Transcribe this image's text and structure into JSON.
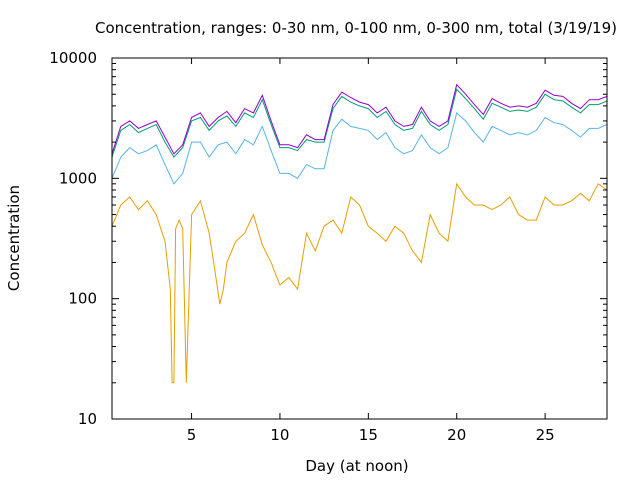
{
  "chart_data": {
    "type": "line",
    "title": "Concentration, ranges: 0-30 nm, 0-100 nm, 0-300 nm, total (3/19/19)",
    "xlabel": "Day (at noon)",
    "ylabel": "Concentration",
    "xlim": [
      0.5,
      28.5
    ],
    "ylim": [
      10,
      10000
    ],
    "yscale": "log",
    "grid": false,
    "legend": "none",
    "xticks": [
      5,
      10,
      15,
      20,
      25
    ],
    "xtick_labels": [
      "5",
      "10",
      "15",
      "20",
      "25"
    ],
    "yticks": [
      10,
      100,
      1000,
      10000
    ],
    "ytick_labels": [
      "10",
      "100",
      "1000",
      "10000"
    ],
    "series": [
      {
        "color": "#e69f00",
        "x": [
          0.5,
          1,
          1.5,
          2,
          2.5,
          3,
          3.5,
          3.8,
          3.9,
          4,
          4.1,
          4.3,
          4.5,
          4.7,
          5,
          5.5,
          6,
          6.3,
          6.6,
          6.8,
          7,
          7.5,
          8,
          8.5,
          9,
          9.5,
          10,
          10.5,
          11,
          11.5,
          12,
          12.5,
          13,
          13.5,
          14,
          14.5,
          15,
          15.5,
          16,
          16.5,
          17,
          17.5,
          18,
          18.5,
          19,
          19.5,
          20,
          20.5,
          21,
          21.5,
          22,
          22.5,
          23,
          23.5,
          24,
          24.5,
          25,
          25.5,
          26,
          26.5,
          27,
          27.5,
          28,
          28.5
        ],
        "values": [
          400,
          600,
          700,
          550,
          650,
          500,
          300,
          120,
          20,
          20,
          380,
          450,
          380,
          20,
          500,
          650,
          350,
          180,
          90,
          120,
          200,
          300,
          350,
          500,
          280,
          200,
          130,
          150,
          120,
          350,
          250,
          400,
          450,
          350,
          700,
          600,
          400,
          350,
          300,
          400,
          350,
          250,
          200,
          500,
          350,
          300,
          900,
          700,
          600,
          600,
          550,
          600,
          700,
          500,
          450,
          450,
          700,
          600,
          600,
          650,
          750,
          650,
          900,
          800
        ]
      },
      {
        "color": "#56b4e9",
        "x": [
          0.5,
          1,
          1.5,
          2,
          2.5,
          3,
          3.5,
          4,
          4.5,
          5,
          5.5,
          6,
          6.5,
          7,
          7.5,
          8,
          8.5,
          9,
          9.5,
          10,
          10.5,
          11,
          11.5,
          12,
          12.5,
          13,
          13.5,
          14,
          14.5,
          15,
          15.5,
          16,
          16.5,
          17,
          17.5,
          18,
          18.5,
          19,
          19.5,
          20,
          20.5,
          21,
          21.5,
          22,
          22.5,
          23,
          23.5,
          24,
          24.5,
          25,
          25.5,
          26,
          26.5,
          27,
          27.5,
          28,
          28.5
        ],
        "values": [
          1000,
          1500,
          1800,
          1600,
          1700,
          1900,
          1300,
          900,
          1100,
          2000,
          2000,
          1500,
          1900,
          2000,
          1600,
          2100,
          1900,
          2700,
          1700,
          1100,
          1100,
          1000,
          1300,
          1200,
          1200,
          2500,
          3100,
          2700,
          2600,
          2500,
          2100,
          2400,
          1800,
          1600,
          1700,
          2300,
          1800,
          1600,
          1800,
          3500,
          3000,
          2400,
          2000,
          2700,
          2500,
          2300,
          2400,
          2300,
          2500,
          3200,
          2900,
          2800,
          2500,
          2200,
          2600,
          2600,
          2800
        ]
      },
      {
        "color": "#009e73",
        "x": [
          0.5,
          1,
          1.5,
          2,
          2.5,
          3,
          3.5,
          4,
          4.5,
          5,
          5.5,
          6,
          6.5,
          7,
          7.5,
          8,
          8.5,
          9,
          9.5,
          10,
          10.5,
          11,
          11.5,
          12,
          12.5,
          13,
          13.5,
          14,
          14.5,
          15,
          15.5,
          16,
          16.5,
          17,
          17.5,
          18,
          18.5,
          19,
          19.5,
          20,
          20.5,
          21,
          21.5,
          22,
          22.5,
          23,
          23.5,
          24,
          24.5,
          25,
          25.5,
          26,
          26.5,
          27,
          27.5,
          28,
          28.5
        ],
        "values": [
          1500,
          2500,
          2800,
          2400,
          2600,
          2800,
          2000,
          1500,
          1800,
          3000,
          3200,
          2500,
          3000,
          3300,
          2700,
          3500,
          3200,
          4500,
          2800,
          1800,
          1800,
          1700,
          2100,
          2000,
          2000,
          3800,
          4800,
          4300,
          4000,
          3800,
          3200,
          3600,
          2800,
          2500,
          2600,
          3600,
          2800,
          2500,
          2800,
          5500,
          4600,
          3800,
          3100,
          4200,
          3900,
          3600,
          3700,
          3600,
          3900,
          5000,
          4500,
          4400,
          3900,
          3500,
          4100,
          4100,
          4400
        ]
      },
      {
        "color": "#9400d3",
        "x": [
          0.5,
          1,
          1.5,
          2,
          2.5,
          3,
          3.5,
          4,
          4.5,
          5,
          5.5,
          6,
          6.5,
          7,
          7.5,
          8,
          8.5,
          9,
          9.5,
          10,
          10.5,
          11,
          11.5,
          12,
          12.5,
          13,
          13.5,
          14,
          14.5,
          15,
          15.5,
          16,
          16.5,
          17,
          17.5,
          18,
          18.5,
          19,
          19.5,
          20,
          20.5,
          21,
          21.5,
          22,
          22.5,
          23,
          23.5,
          24,
          24.5,
          25,
          25.5,
          26,
          26.5,
          27,
          27.5,
          28,
          28.5
        ],
        "values": [
          1600,
          2700,
          3000,
          2600,
          2800,
          3000,
          2200,
          1600,
          1900,
          3200,
          3500,
          2700,
          3200,
          3600,
          2900,
          3800,
          3500,
          4900,
          3000,
          1900,
          1900,
          1800,
          2300,
          2100,
          2100,
          4100,
          5200,
          4700,
          4300,
          4100,
          3500,
          3900,
          3000,
          2700,
          2800,
          3900,
          3000,
          2700,
          3000,
          6000,
          5000,
          4100,
          3400,
          4600,
          4200,
          3900,
          4000,
          3900,
          4200,
          5400,
          4900,
          4800,
          4200,
          3800,
          4500,
          4500,
          4800
        ]
      }
    ]
  }
}
